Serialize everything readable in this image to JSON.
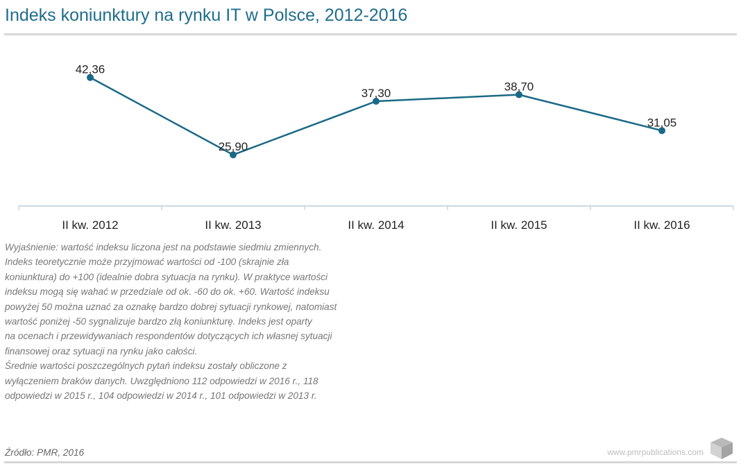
{
  "title": "Indeks koniunktury na rynku IT w Polsce, 2012-2016",
  "note": [
    "Wyjaśnienie: wartość indeksu liczona jest na podstawie siedmiu zmiennych.",
    "Indeks teoretycznie może przyjmować wartości od -100 (skrajnie zła",
    "koniunktura) do +100 (idealnie dobra sytuacja na rynku). W praktyce wartości",
    "indeksu mogą się wahać w przedziale od ok. -60 do ok. +60. Wartość indeksu",
    "powyżej 50 można uznać za oznakę bardzo dobrej sytuacji rynkowej, natomiast",
    "wartość poniżej -50 sygnalizuje bardzo złą koniunkturę. Indeks jest oparty",
    "na ocenach i przewidywaniach respondentów dotyczących ich własnej sytuacji",
    "finansowej oraz sytuacji na rynku jako całości.",
    "Średnie wartości poszczególnych pytań indeksu zostały obliczone z",
    "wyłączeniem braków danych. Uwzględniono 112 odpowiedzi w 2016 r., 118",
    "odpowiedzi w 2015 r., 104 odpowiedzi w 2014 r., 101 odpowiedzi w 2013 r."
  ],
  "source": "Źródło: PMR, 2016",
  "website": "www.pmrpublications.com",
  "colors": {
    "line": "#1a6986",
    "title": "#1f6d8c",
    "axis": "#c9d8e3"
  },
  "chart_data": {
    "type": "line",
    "categories": [
      "II kw. 2012",
      "II kw. 2013",
      "II kw. 2014",
      "II kw. 2015",
      "II kw. 2016"
    ],
    "values": [
      42.36,
      25.9,
      37.3,
      38.7,
      31.05
    ],
    "value_labels": [
      "42,36",
      "25,90",
      "37,30",
      "38,70",
      "31,05"
    ],
    "ylim": [
      15,
      50
    ],
    "grid": false,
    "legend": "none"
  }
}
